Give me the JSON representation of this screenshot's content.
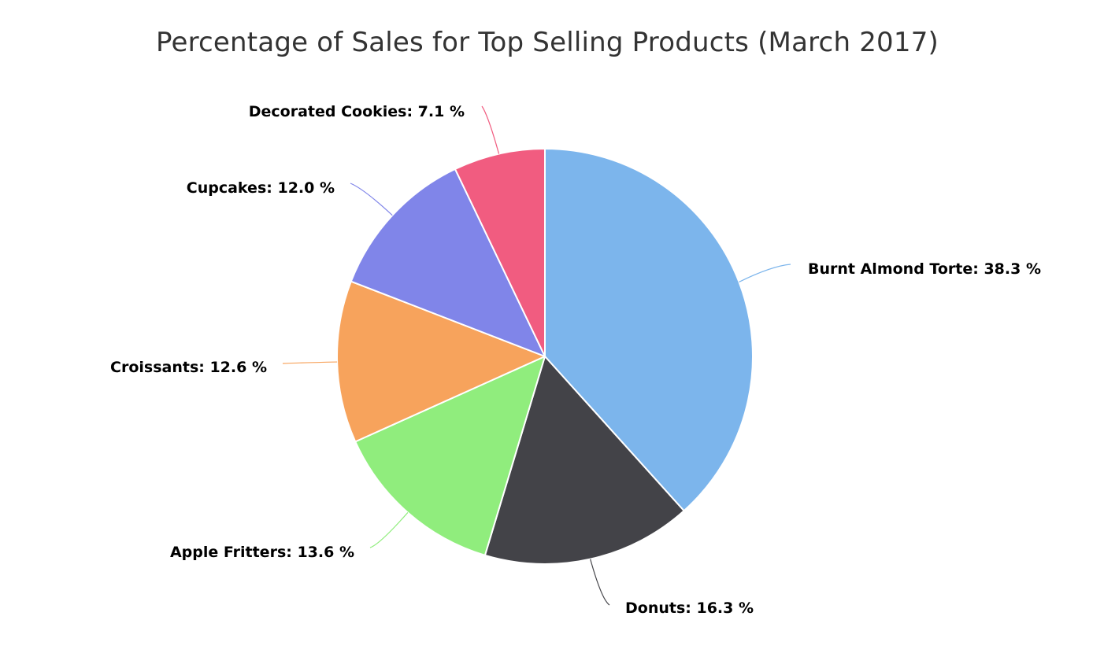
{
  "chart_data": {
    "type": "pie",
    "title": "Percentage of Sales for Top Selling Products (March 2017)",
    "unit": "%",
    "slices": [
      {
        "name": "Burnt Almond Torte",
        "value": 38.3,
        "label": "Burnt Almond Torte: 38.3 %",
        "color": "#7cb5ec"
      },
      {
        "name": "Donuts",
        "value": 16.3,
        "label": "Donuts: 16.3 %",
        "color": "#434348"
      },
      {
        "name": "Apple Fritters",
        "value": 13.6,
        "label": "Apple Fritters: 13.6 %",
        "color": "#90ed7d"
      },
      {
        "name": "Croissants",
        "value": 12.6,
        "label": "Croissants: 12.6 %",
        "color": "#f7a35c"
      },
      {
        "name": "Cupcakes",
        "value": 12.0,
        "label": "Cupcakes: 12.0 %",
        "color": "#8085e9"
      },
      {
        "name": "Decorated Cookies",
        "value": 7.1,
        "label": "Decorated Cookies: 7.1 %",
        "color": "#f15c80"
      }
    ],
    "legend": "none"
  }
}
